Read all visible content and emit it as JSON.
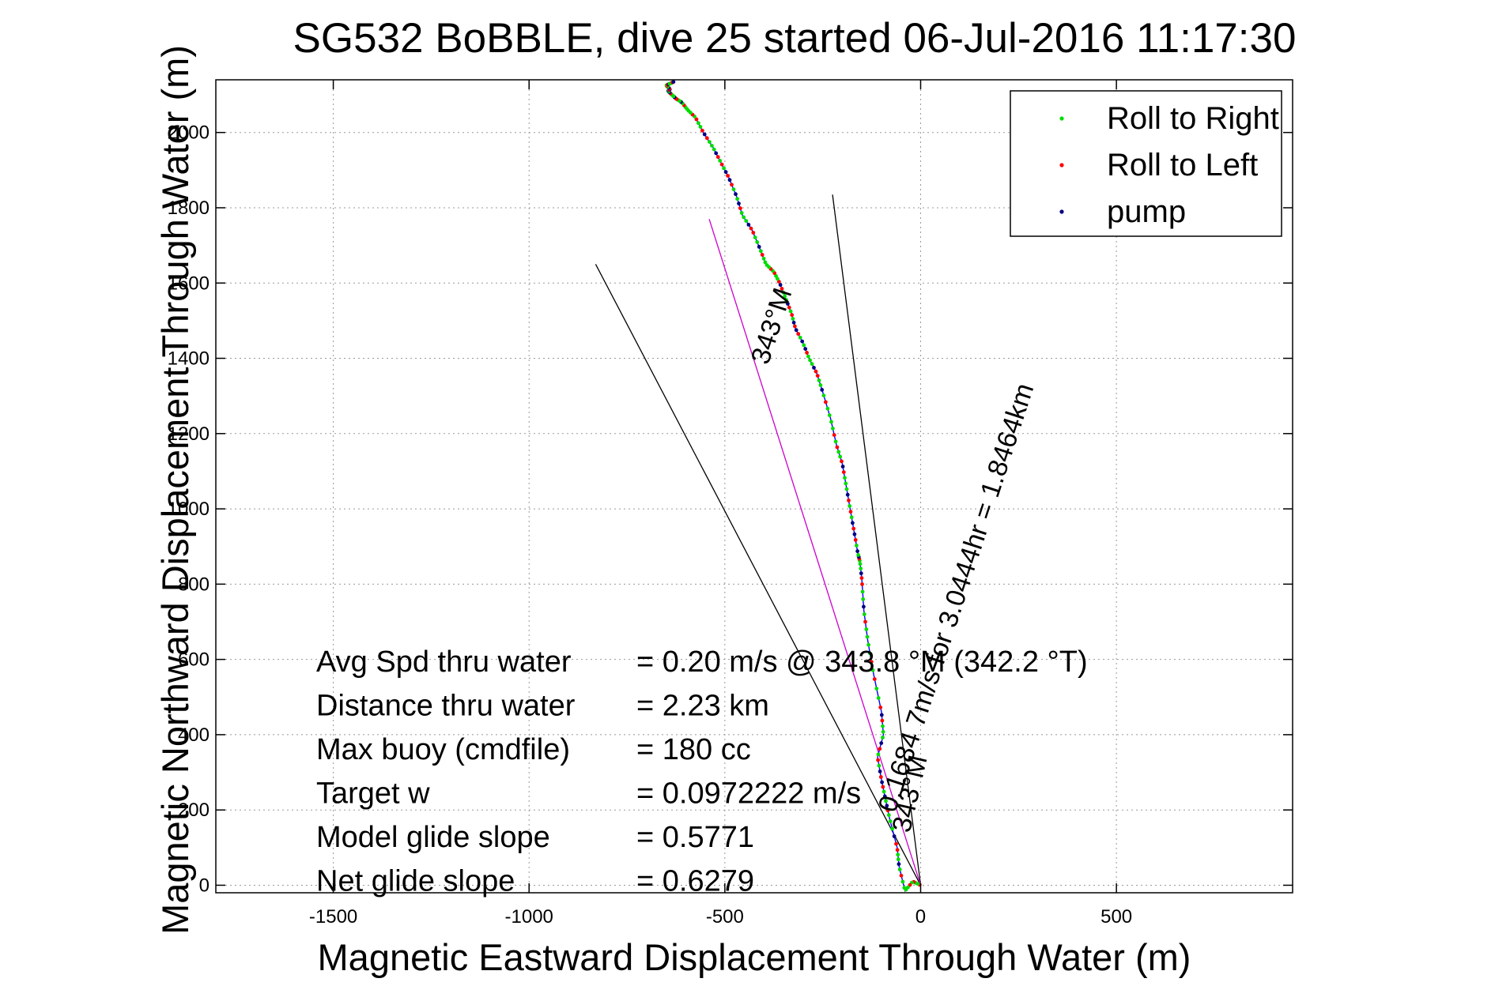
{
  "chart_data": {
    "type": "line",
    "title": "SG532 BoBBLE, dive 25 started 06-Jul-2016 11:17:30",
    "xlabel": "Magnetic Eastward Displacement Through Water (m)",
    "ylabel": "Magnetic Northward Displacement Through Water (m)",
    "xlim": [
      -1800,
      950
    ],
    "ylim": [
      -20,
      2140
    ],
    "xticks": [
      -1500,
      -1000,
      -500,
      0,
      500
    ],
    "yticks": [
      0,
      200,
      400,
      600,
      800,
      1000,
      1200,
      1400,
      1600,
      1800,
      2000
    ],
    "grid": true,
    "legend_position": "top-right",
    "colors": {
      "track": "#0000ff",
      "roll_right": "#00dd00",
      "roll_left": "#ff0000",
      "pump": "#000080",
      "heading": "#cc00cc",
      "bounds": "#000000"
    },
    "legend": [
      {
        "label": "Roll to Right",
        "color": "#00dd00"
      },
      {
        "label": "Roll to Left",
        "color": "#ff0000"
      },
      {
        "label": "pump",
        "color": "#000080"
      }
    ],
    "track": {
      "x": [
        0,
        -20,
        -40,
        -55,
        -60,
        -80,
        -90,
        -100,
        -110,
        -95,
        -100,
        -120,
        -135,
        -145,
        -150,
        -155,
        -160,
        -170,
        -180,
        -190,
        -200,
        -215,
        -230,
        -250,
        -265,
        -285,
        -300,
        -320,
        -330,
        -345,
        -360,
        -375,
        -395,
        -410,
        -430,
        -455,
        -470,
        -490,
        -510,
        -530,
        -555,
        -575,
        -595,
        -610,
        -625,
        -635,
        -645,
        -640,
        -650,
        -640,
        -630
      ],
      "y": [
        0,
        10,
        -15,
        50,
        100,
        180,
        230,
        280,
        340,
        400,
        460,
        560,
        650,
        730,
        810,
        860,
        880,
        940,
        1000,
        1060,
        1120,
        1170,
        1240,
        1310,
        1360,
        1400,
        1440,
        1480,
        1520,
        1560,
        1600,
        1630,
        1650,
        1690,
        1740,
        1780,
        1830,
        1880,
        1920,
        1960,
        2000,
        2040,
        2060,
        2080,
        2090,
        2100,
        2110,
        2115,
        2125,
        2130,
        2135
      ]
    },
    "heading_line": {
      "label": "1.8464km 343°M",
      "x": [
        0,
        -540
      ],
      "y": [
        0,
        1770
      ]
    },
    "bounds_lines": [
      {
        "x": [
          0,
          -830
        ],
        "y": [
          0,
          1650
        ]
      },
      {
        "x": [
          0,
          -225
        ],
        "y": [
          0,
          1835
        ]
      }
    ],
    "annotations": [
      {
        "text": "0.1684 7m/s for 3.0444hr = 1.8464km",
        "x": -65,
        "y": 190
      },
      {
        "text": "343°M",
        "x": -40,
        "y": 200
      },
      {
        "text": "343°M",
        "x": -390,
        "y": 1380
      }
    ],
    "stats": [
      {
        "label": "Avg Spd thru water",
        "value": "=  0.20 m/s @ 343.8 °M (342.2 °T)"
      },
      {
        "label": "Distance thru water",
        "value": "=  2.23 km"
      },
      {
        "label": "Max buoy (cmdfile)",
        "value": "= 180 cc"
      },
      {
        "label": "Target w",
        "value": "= 0.0972222 m/s"
      },
      {
        "label": "Model glide slope",
        "value": "= 0.5771"
      },
      {
        "label": "Net glide slope",
        "value": "= 0.6279"
      }
    ]
  }
}
